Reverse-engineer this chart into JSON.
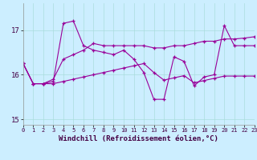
{
  "xlabel": "Windchill (Refroidissement éolien,°C)",
  "bg_color": "#cceeff",
  "line_color": "#990099",
  "x": [
    0,
    1,
    2,
    3,
    4,
    5,
    6,
    7,
    8,
    9,
    10,
    11,
    12,
    13,
    14,
    15,
    16,
    17,
    18,
    19,
    20,
    21,
    22,
    23
  ],
  "y_main": [
    16.25,
    15.8,
    15.8,
    15.85,
    17.15,
    17.2,
    16.65,
    16.55,
    16.5,
    16.45,
    16.55,
    16.35,
    16.05,
    15.45,
    15.45,
    16.4,
    16.3,
    15.75,
    15.95,
    16.0,
    17.1,
    16.65,
    16.65,
    16.65
  ],
  "y_upper": [
    16.25,
    15.8,
    15.8,
    15.9,
    16.35,
    16.45,
    16.55,
    16.7,
    16.65,
    16.65,
    16.65,
    16.65,
    16.65,
    16.6,
    16.6,
    16.65,
    16.65,
    16.7,
    16.75,
    16.75,
    16.8,
    16.8,
    16.82,
    16.85
  ],
  "y_lower": [
    16.25,
    15.8,
    15.8,
    15.8,
    15.85,
    15.9,
    15.95,
    16.0,
    16.05,
    16.1,
    16.15,
    16.2,
    16.25,
    16.05,
    15.88,
    15.93,
    15.98,
    15.82,
    15.87,
    15.92,
    15.97,
    15.97,
    15.97,
    15.97
  ],
  "ylim": [
    14.88,
    17.6
  ],
  "yticks": [
    15,
    16,
    17
  ],
  "xlim": [
    0,
    23
  ],
  "xticks": [
    0,
    1,
    2,
    3,
    4,
    5,
    6,
    7,
    8,
    9,
    10,
    11,
    12,
    13,
    14,
    15,
    16,
    17,
    18,
    19,
    20,
    21,
    22,
    23
  ],
  "grid_color": "#aadddd",
  "marker": "+"
}
